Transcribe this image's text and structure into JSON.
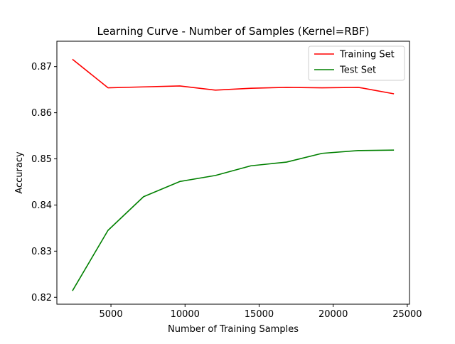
{
  "chart_data": {
    "type": "line",
    "title": "Learning Curve - Number of Samples (Kernel=RBF)",
    "xlabel": "Number of Training Samples",
    "ylabel": "Accuracy",
    "xlim": [
      1350,
      25150
    ],
    "ylim": [
      0.8185,
      0.8755
    ],
    "xticks": [
      5000,
      10000,
      15000,
      20000,
      25000
    ],
    "yticks": [
      0.82,
      0.83,
      0.84,
      0.85,
      0.86,
      0.87
    ],
    "grid": false,
    "legend_position": "top-right",
    "series": [
      {
        "name": "Training Set",
        "color": "#ff0000",
        "x": [
          2400,
          4800,
          7200,
          9650,
          12050,
          14450,
          16850,
          19250,
          21700,
          24100
        ],
        "y": [
          0.8716,
          0.8654,
          0.8656,
          0.8658,
          0.8649,
          0.8653,
          0.8655,
          0.8654,
          0.8655,
          0.8641
        ]
      },
      {
        "name": "Test Set",
        "color": "#008000",
        "x": [
          2400,
          4800,
          7200,
          9650,
          12050,
          14450,
          16850,
          19250,
          21700,
          24100
        ],
        "y": [
          0.8214,
          0.8345,
          0.8418,
          0.8451,
          0.8464,
          0.8485,
          0.8493,
          0.8512,
          0.8518,
          0.8519
        ]
      }
    ]
  }
}
